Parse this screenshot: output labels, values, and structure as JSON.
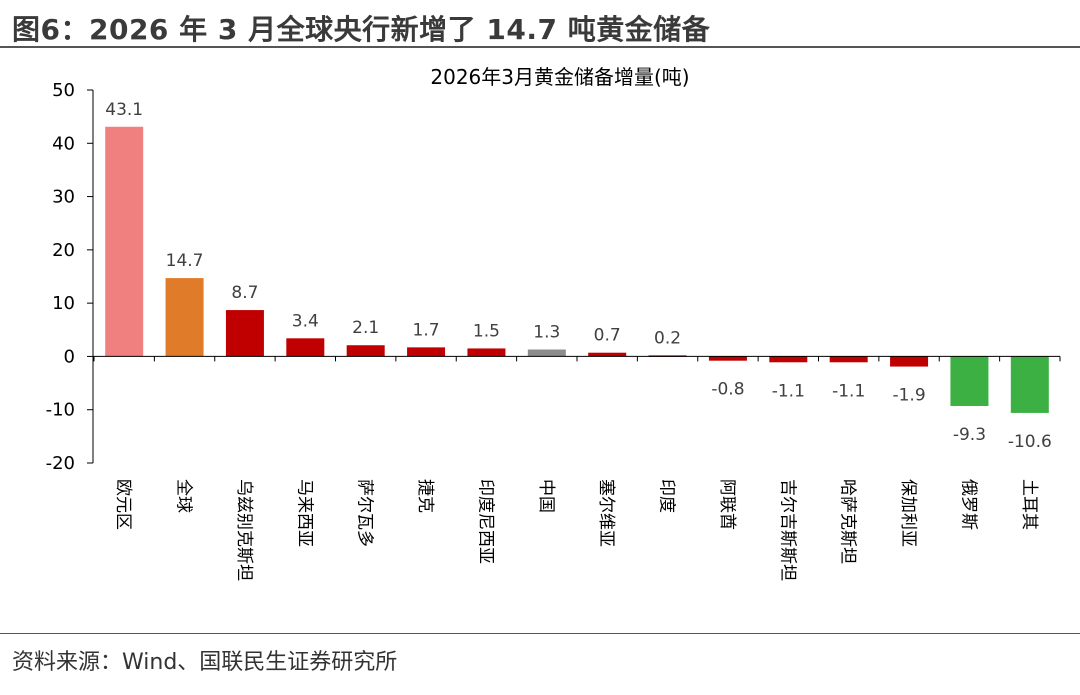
{
  "figure_title": "图6：2026 年 3 月全球央行新增了 14.7 吨黄金储备",
  "source_note": "资料来源：Wind、国联民生证券研究所",
  "colors": {
    "eurozone": "#f08080",
    "global": "#e07b2a",
    "positive": "#c00000",
    "china": "#8c8c8c",
    "negative": "#3cb043"
  },
  "chart_data": {
    "type": "bar",
    "title": "2026年3月黄金储备增量(吨)",
    "categories": [
      "欧元区",
      "全球",
      "乌兹别克斯坦",
      "马来西亚",
      "萨尔瓦多",
      "捷克",
      "印度尼西亚",
      "中国",
      "塞尔维亚",
      "印度",
      "阿联酋",
      "吉尔吉斯斯坦",
      "哈萨克斯坦",
      "保加利亚",
      "俄罗斯",
      "土耳其"
    ],
    "values": [
      43.1,
      14.7,
      8.7,
      3.4,
      2.1,
      1.7,
      1.5,
      1.3,
      0.7,
      0.2,
      -0.8,
      -1.1,
      -1.1,
      -1.9,
      -9.3,
      -10.6
    ],
    "value_labels": [
      "43.1",
      "14.7",
      "8.7",
      "3.4",
      "2.1",
      "1.7",
      "1.5",
      "1.3",
      "0.7",
      "0.2",
      "-0.8",
      "-1.1",
      "-1.1",
      "-1.9",
      "-9.3",
      "-10.6"
    ],
    "bar_colors": [
      "#f08080",
      "#e07b2a",
      "#c00000",
      "#c00000",
      "#c00000",
      "#c00000",
      "#c00000",
      "#8c8c8c",
      "#c00000",
      "#c00000",
      "#c00000",
      "#c00000",
      "#c00000",
      "#c00000",
      "#3cb043",
      "#3cb043"
    ],
    "ylim": [
      -20,
      50
    ],
    "yticks": [
      -20,
      -10,
      0,
      10,
      20,
      30,
      40,
      50
    ],
    "ytick_labels": [
      "-20",
      "-10",
      "0",
      "10",
      "20",
      "30",
      "40",
      "50"
    ],
    "grid": false,
    "legend": "none"
  }
}
